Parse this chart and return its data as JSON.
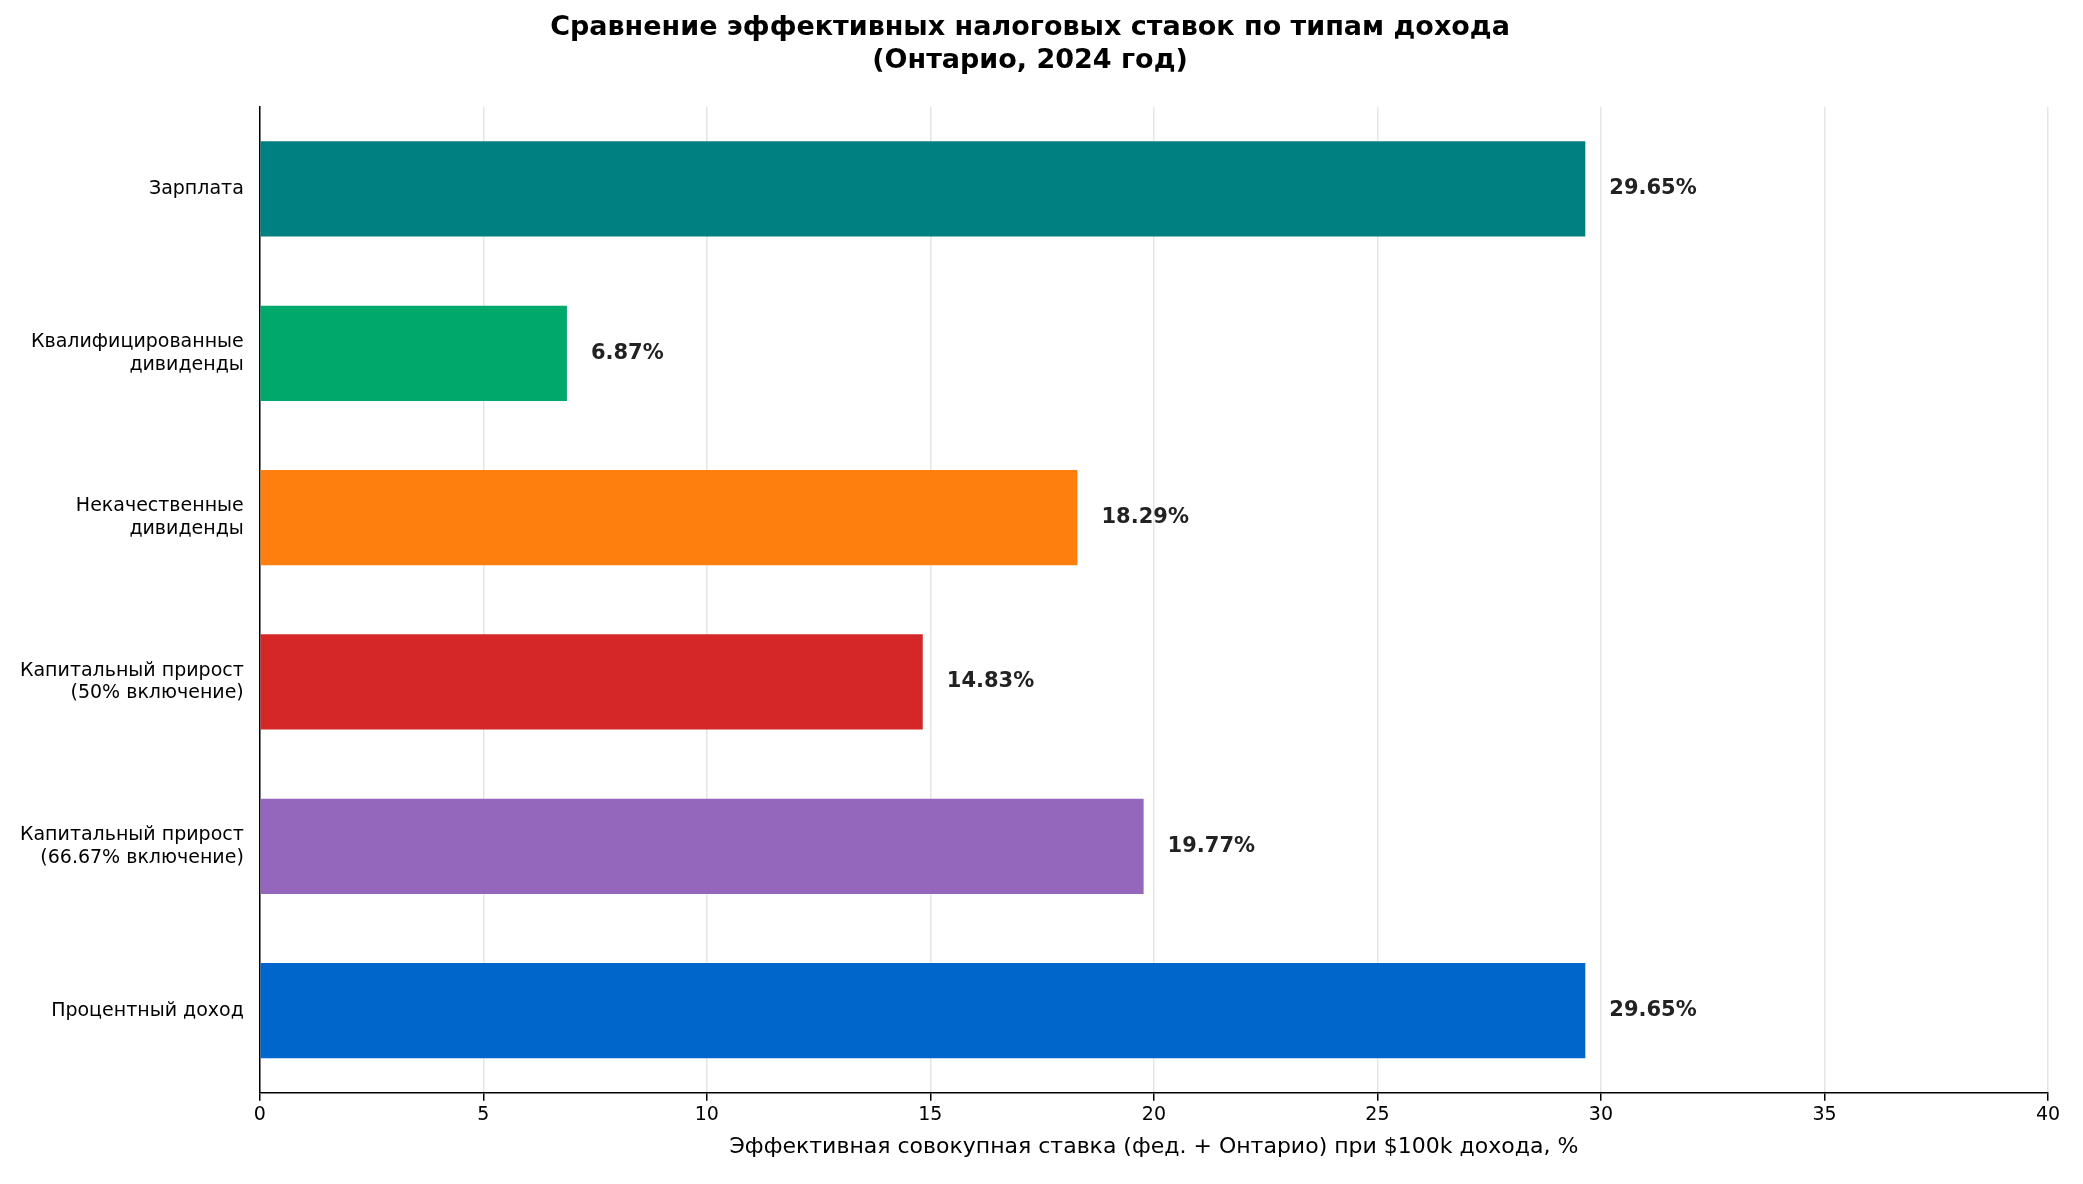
{
  "chart_data": {
    "type": "bar",
    "orientation": "horizontal",
    "title": "Сравнение эффективных налоговых ставок по типам дохода\n(Онтарио, 2024 год)",
    "xlabel": "Эффективная совокупная ставка (фед. + Онтарио) при $100k дохода, %",
    "categories": [
      "Зарплата",
      "Квалифицированные\nдивиденды",
      "Некачественные\nдивиденды",
      "Капитальный прирост\n(50% включение)",
      "Капитальный прирост\n(66.67% включение)",
      "Процентный доход"
    ],
    "values": [
      29.65,
      6.87,
      18.29,
      14.83,
      19.77,
      29.65
    ],
    "colors": [
      "#008080",
      "#00a86b",
      "#ff7f0e",
      "#d62728",
      "#9467bd",
      "#0066cc"
    ],
    "value_labels": [
      "29.65%",
      "6.87%",
      "18.29%",
      "14.83%",
      "19.77%",
      "29.65%"
    ],
    "xlim": [
      0,
      40
    ],
    "xticks": [
      0,
      5,
      10,
      15,
      20,
      25,
      30,
      35,
      40
    ],
    "grid": "x",
    "legend": false
  }
}
